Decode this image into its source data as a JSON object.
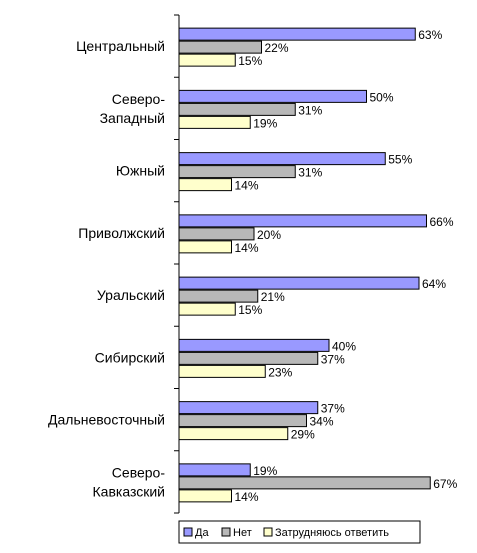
{
  "chart_data": {
    "type": "bar",
    "orientation": "horizontal",
    "categories": [
      [
        "Центральный"
      ],
      [
        "Северо-",
        "Западный"
      ],
      [
        "Южный"
      ],
      [
        "Приволжский"
      ],
      [
        "Уральский"
      ],
      [
        "Сибирский"
      ],
      [
        "Дальневосточный"
      ],
      [
        "Северо-",
        "Кавказский"
      ]
    ],
    "series": [
      {
        "name": "Да",
        "color": "#9999ff",
        "values": [
          63,
          50,
          55,
          66,
          64,
          40,
          37,
          19
        ]
      },
      {
        "name": "Нет",
        "color": "#b8b8b8",
        "values": [
          22,
          31,
          31,
          20,
          21,
          37,
          34,
          67
        ]
      },
      {
        "name": "Затрудняюсь ответить",
        "color": "#ffffcc",
        "values": [
          15,
          19,
          14,
          14,
          15,
          23,
          29,
          14
        ]
      }
    ],
    "value_suffix": "%",
    "xlim": [
      0,
      70
    ],
    "grid": false,
    "legend_position": "bottom"
  }
}
